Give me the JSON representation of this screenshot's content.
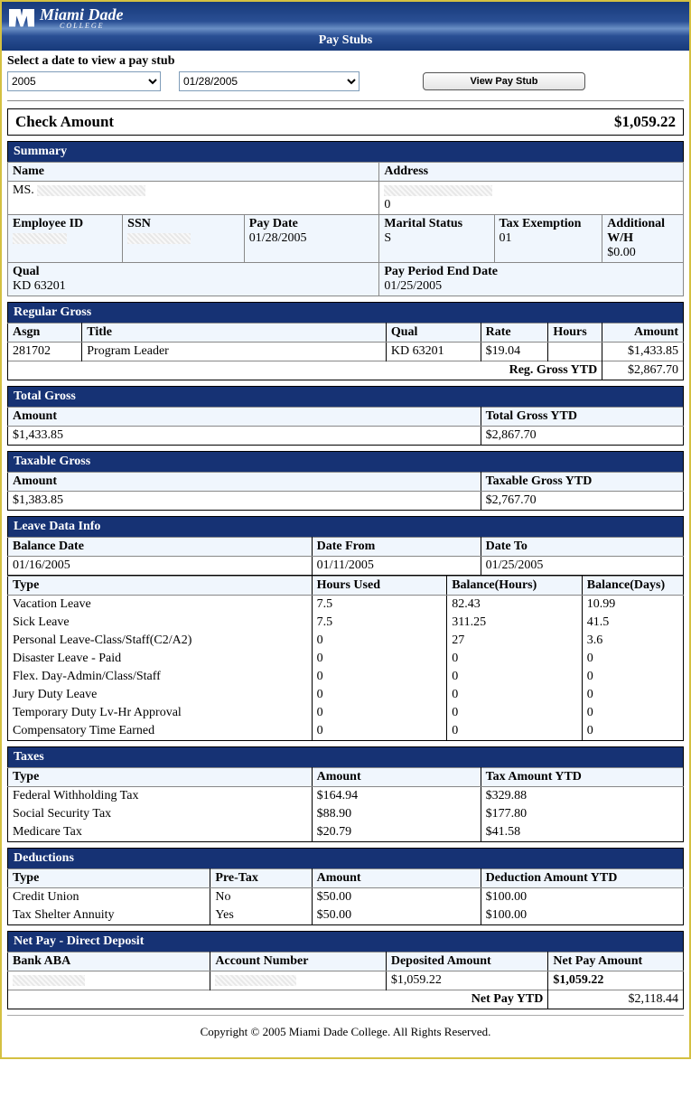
{
  "brand": {
    "name": "Miami Dade",
    "sub": "COLLEGE"
  },
  "page_title": "Pay Stubs",
  "selector": {
    "label": "Select a date to view a pay stub",
    "year": "2005",
    "date": "01/28/2005",
    "button": "View Pay Stub"
  },
  "check": {
    "label": "Check Amount",
    "amount": "$1,059.22"
  },
  "sections": {
    "summary": "Summary",
    "regular_gross": "Regular Gross",
    "total_gross": "Total Gross",
    "taxable_gross": "Taxable Gross",
    "leave": "Leave Data Info",
    "taxes": "Taxes",
    "deductions": "Deductions",
    "netpay": "Net Pay - Direct Deposit"
  },
  "summary": {
    "name_lbl": "Name",
    "name_val": "MS.",
    "address_lbl": "Address",
    "address_val": "0",
    "empid_lbl": "Employee ID",
    "empid_val": "",
    "ssn_lbl": "SSN",
    "ssn_val": "",
    "paydate_lbl": "Pay Date",
    "paydate_val": "01/28/2005",
    "marital_lbl": "Marital Status",
    "marital_val": "S",
    "taxex_lbl": "Tax Exemption",
    "taxex_val": "01",
    "addwh_lbl": "Additional W/H",
    "addwh_val": "$0.00",
    "qual_lbl": "Qual",
    "qual_val": "KD 63201",
    "ppend_lbl": "Pay Period End Date",
    "ppend_val": "01/25/2005"
  },
  "regular_gross": {
    "headers": {
      "asgn": "Asgn",
      "title": "Title",
      "qual": "Qual",
      "rate": "Rate",
      "hours": "Hours",
      "amount": "Amount"
    },
    "row": {
      "asgn": "281702",
      "title": "Program Leader",
      "qual": "KD 63201",
      "rate": "$19.04",
      "hours": "",
      "amount": "$1,433.85"
    },
    "ytd_label": "Reg. Gross YTD",
    "ytd_val": "$2,867.70"
  },
  "total_gross": {
    "amount_lbl": "Amount",
    "amount_val": "$1,433.85",
    "ytd_lbl": "Total Gross YTD",
    "ytd_val": "$2,867.70"
  },
  "taxable_gross": {
    "amount_lbl": "Amount",
    "amount_val": "$1,383.85",
    "ytd_lbl": "Taxable Gross YTD",
    "ytd_val": "$2,767.70"
  },
  "leave": {
    "baldate_lbl": "Balance Date",
    "baldate_val": "01/16/2005",
    "from_lbl": "Date From",
    "from_val": "01/11/2005",
    "to_lbl": "Date To",
    "to_val": "01/25/2005",
    "cols": {
      "type": "Type",
      "hours": "Hours Used",
      "balh": "Balance(Hours)",
      "bald": "Balance(Days)"
    },
    "rows": [
      {
        "type": "Vacation Leave",
        "hours": "7.5",
        "balh": "82.43",
        "bald": "10.99"
      },
      {
        "type": "Sick Leave",
        "hours": "7.5",
        "balh": "311.25",
        "bald": "41.5"
      },
      {
        "type": "Personal Leave-Class/Staff(C2/A2)",
        "hours": "0",
        "balh": "27",
        "bald": "3.6"
      },
      {
        "type": "Disaster Leave - Paid",
        "hours": "0",
        "balh": "0",
        "bald": "0"
      },
      {
        "type": "Flex. Day-Admin/Class/Staff",
        "hours": "0",
        "balh": "0",
        "bald": "0"
      },
      {
        "type": "Jury Duty Leave",
        "hours": "0",
        "balh": "0",
        "bald": "0"
      },
      {
        "type": "Temporary Duty Lv-Hr Approval",
        "hours": "0",
        "balh": "0",
        "bald": "0"
      },
      {
        "type": "Compensatory Time Earned",
        "hours": "0",
        "balh": "0",
        "bald": "0"
      }
    ]
  },
  "taxes": {
    "cols": {
      "type": "Type",
      "amount": "Amount",
      "ytd": "Tax Amount YTD"
    },
    "rows": [
      {
        "type": "Federal Withholding Tax",
        "amount": "$164.94",
        "ytd": "$329.88"
      },
      {
        "type": "Social Security Tax",
        "amount": "$88.90",
        "ytd": "$177.80"
      },
      {
        "type": "Medicare Tax",
        "amount": "$20.79",
        "ytd": "$41.58"
      }
    ]
  },
  "deductions": {
    "cols": {
      "type": "Type",
      "pretax": "Pre-Tax",
      "amount": "Amount",
      "ytd": "Deduction Amount YTD"
    },
    "rows": [
      {
        "type": "Credit Union",
        "pretax": "No",
        "amount": "$50.00",
        "ytd": "$100.00"
      },
      {
        "type": "Tax Shelter Annuity",
        "pretax": "Yes",
        "amount": "$50.00",
        "ytd": "$100.00"
      }
    ]
  },
  "netpay": {
    "cols": {
      "aba": "Bank ABA",
      "acct": "Account Number",
      "dep": "Deposited Amount",
      "net": "Net Pay Amount"
    },
    "row": {
      "aba": "",
      "acct": "",
      "dep": "$1,059.22",
      "net": "$1,059.22"
    },
    "ytd_lbl": "Net Pay YTD",
    "ytd_val": "$2,118.44"
  },
  "footer": "Copyright © 2005 Miami Dade College. All Rights Reserved."
}
